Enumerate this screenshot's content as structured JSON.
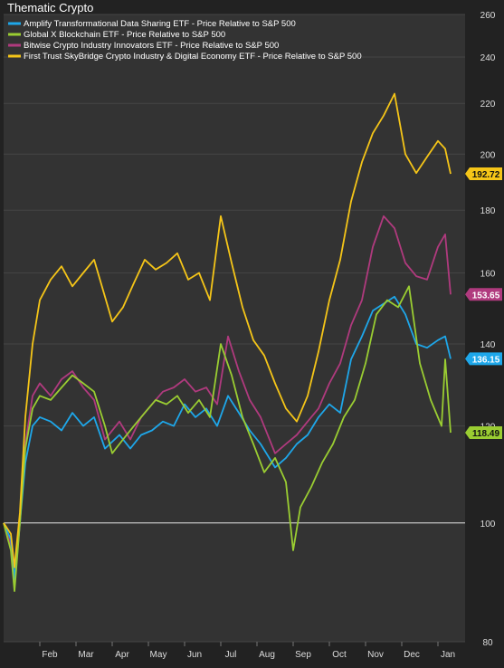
{
  "chart_data": {
    "type": "line",
    "title": "Thematic Crypto",
    "ylim": [
      80,
      260
    ],
    "y_scale": "log",
    "y_ticks": [
      80,
      100,
      120,
      140,
      160,
      180,
      200,
      220,
      240,
      260
    ],
    "baseline": 100,
    "x_tick_labels": [
      "Feb",
      "Mar",
      "Apr",
      "May",
      "Jun",
      "Jul",
      "Aug",
      "Sep",
      "Oct",
      "Nov",
      "Dec",
      "Jan"
    ],
    "x_tick_months": [
      1,
      2,
      3,
      4,
      5,
      6,
      7,
      8,
      9,
      10,
      11,
      12
    ],
    "x_range_months": [
      0,
      12.75
    ],
    "legend_position": "top-left",
    "grid": true,
    "series": [
      {
        "name": "Amplify Transformational Data Sharing ETF - Price Relative to S&P 500",
        "color": "#1ea7ea",
        "end_label": "136.15",
        "x": [
          0,
          0.2,
          0.3,
          0.45,
          0.6,
          0.8,
          1.0,
          1.3,
          1.6,
          1.9,
          2.2,
          2.5,
          2.8,
          3.2,
          3.5,
          3.8,
          4.1,
          4.4,
          4.7,
          5.0,
          5.3,
          5.6,
          5.9,
          6.2,
          6.5,
          6.8,
          7.1,
          7.5,
          7.8,
          8.1,
          8.4,
          8.7,
          9.0,
          9.3,
          9.6,
          9.9,
          10.2,
          10.5,
          10.8,
          11.1,
          11.4,
          11.7,
          12.0,
          12.2,
          12.35
        ],
        "values": [
          100,
          97,
          90,
          100,
          112,
          120,
          122,
          121,
          119,
          123,
          120,
          122,
          115,
          118,
          115,
          118,
          119,
          121,
          120,
          125,
          122,
          124,
          120,
          127,
          123,
          119,
          116,
          111,
          113,
          116,
          118,
          122,
          125,
          123,
          136,
          142,
          149,
          151,
          153,
          148,
          140,
          139,
          141,
          142,
          136.15
        ]
      },
      {
        "name": "Global X Blockchain ETF - Price Relative to S&P 500",
        "color": "#9acd32",
        "end_label": "118.49",
        "x": [
          0,
          0.2,
          0.3,
          0.45,
          0.6,
          0.8,
          1.0,
          1.3,
          1.6,
          1.9,
          2.2,
          2.5,
          2.8,
          3.0,
          3.3,
          3.6,
          3.9,
          4.2,
          4.5,
          4.8,
          5.1,
          5.4,
          5.7,
          6.0,
          6.3,
          6.6,
          6.9,
          7.2,
          7.5,
          7.8,
          8.0,
          8.2,
          8.5,
          8.8,
          9.1,
          9.4,
          9.7,
          10.0,
          10.3,
          10.6,
          10.9,
          11.2,
          11.5,
          11.8,
          12.1,
          12.2,
          12.35
        ],
        "values": [
          100,
          95,
          88,
          100,
          115,
          124,
          127,
          126,
          129,
          132,
          130,
          128,
          120,
          114,
          117,
          120,
          123,
          126,
          125,
          127,
          123,
          126,
          122,
          140,
          132,
          122,
          116,
          110,
          113,
          108,
          95,
          103,
          107,
          112,
          116,
          122,
          126,
          135,
          148,
          152,
          150,
          156,
          135,
          126,
          120,
          136,
          118.49
        ]
      },
      {
        "name": "Bitwise Crypto Industry Innovators ETF - Price Relative to S&P 500",
        "color": "#b03a7e",
        "end_label": "153.65",
        "x": [
          0,
          0.2,
          0.3,
          0.45,
          0.6,
          0.8,
          1.0,
          1.3,
          1.6,
          1.9,
          2.2,
          2.5,
          2.8,
          3.2,
          3.5,
          3.8,
          4.1,
          4.4,
          4.7,
          5.0,
          5.3,
          5.6,
          5.9,
          6.2,
          6.5,
          6.8,
          7.1,
          7.5,
          7.8,
          8.1,
          8.4,
          8.7,
          9.0,
          9.3,
          9.6,
          9.9,
          10.2,
          10.5,
          10.8,
          11.1,
          11.4,
          11.7,
          12.0,
          12.2,
          12.35
        ],
        "values": [
          100,
          96,
          89,
          100,
          116,
          127,
          130,
          127,
          131,
          133,
          129,
          126,
          117,
          121,
          117,
          122,
          125,
          128,
          129,
          131,
          128,
          129,
          125,
          142,
          133,
          126,
          122,
          114,
          116,
          118,
          121,
          124,
          130,
          135,
          145,
          152,
          168,
          178,
          174,
          163,
          159,
          158,
          168,
          172,
          153.65
        ]
      },
      {
        "name": "First Trust SkyBridge Crypto Industry & Digital Economy ETF - Price Relative to S&P 500",
        "color": "#f5c518",
        "end_label": "192.72",
        "x": [
          0,
          0.2,
          0.3,
          0.45,
          0.6,
          0.8,
          1.0,
          1.3,
          1.6,
          1.9,
          2.2,
          2.5,
          2.8,
          3.0,
          3.3,
          3.6,
          3.9,
          4.2,
          4.5,
          4.8,
          5.1,
          5.4,
          5.7,
          6.0,
          6.3,
          6.6,
          6.9,
          7.2,
          7.5,
          7.8,
          8.1,
          8.4,
          8.7,
          9.0,
          9.3,
          9.6,
          9.9,
          10.2,
          10.5,
          10.8,
          11.1,
          11.4,
          11.7,
          12.0,
          12.2,
          12.35
        ],
        "values": [
          100,
          98,
          92,
          102,
          122,
          140,
          152,
          158,
          162,
          156,
          160,
          164,
          153,
          146,
          150,
          157,
          164,
          161,
          163,
          166,
          158,
          160,
          152,
          178,
          163,
          150,
          141,
          137,
          130,
          124,
          121,
          127,
          138,
          152,
          164,
          183,
          197,
          208,
          215,
          224,
          200,
          193,
          199,
          205,
          202,
          192.72
        ]
      }
    ]
  }
}
